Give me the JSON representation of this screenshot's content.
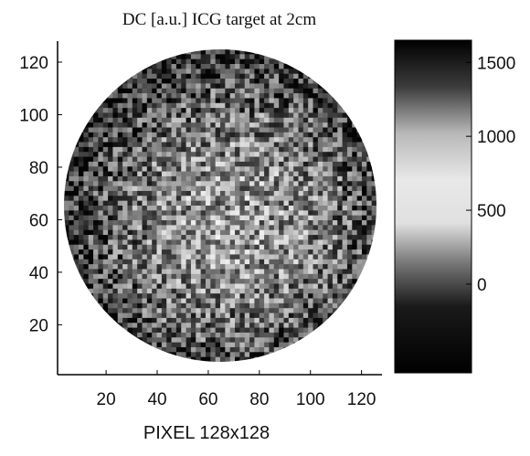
{
  "chart_data": {
    "type": "heatmap",
    "title": "DC [a.u.] ICG target at 2cm",
    "xlabel": "PIXEL 128x128",
    "ylabel": "",
    "xlim": [
      1,
      128
    ],
    "ylim": [
      1,
      128
    ],
    "x_ticks": [
      "20",
      "40",
      "60",
      "80",
      "100",
      "120"
    ],
    "y_ticks": [
      "20",
      "40",
      "60",
      "80",
      "100",
      "120"
    ],
    "colormap": "gray",
    "colorbar": {
      "min": -600,
      "max": 1650,
      "ticks": [
        "0",
        "500",
        "1000",
        "1500"
      ]
    },
    "circular_field_of_view": true
  }
}
